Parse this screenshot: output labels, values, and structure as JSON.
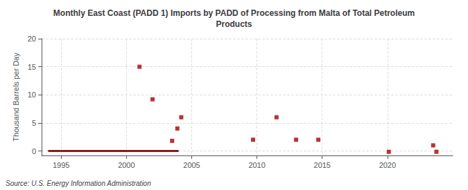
{
  "chart_data": {
    "type": "scatter",
    "title": "Monthly East Coast (PADD 1) Imports by PADD of Processing from Malta of Total Petroleum\nProducts",
    "ylabel": "Thousand Barrels per Day",
    "source": "Source: U.S. Energy Information Administration",
    "xlim": [
      1993.5,
      2025
    ],
    "xticks": [
      1995,
      2000,
      2005,
      2010,
      2015,
      2020
    ],
    "ylim": [
      -0.8,
      20
    ],
    "yticks": [
      0,
      5,
      10,
      15,
      20
    ],
    "grid": true,
    "series": [
      {
        "type": "line",
        "color": "#8b1a1a",
        "line_style": "solid",
        "x": [
          1994.0,
          2004.0
        ],
        "values": [
          0,
          0
        ]
      },
      {
        "type": "scatter",
        "color": "#aa0000",
        "marker": "square",
        "x": [
          2001.0,
          2002.0,
          2003.5,
          2003.9,
          2004.2,
          2009.7,
          2011.5,
          2013.0,
          2014.7,
          2020.1,
          2023.5,
          2023.75
        ],
        "values": [
          15,
          9.2,
          1.8,
          4.0,
          6.0,
          2.0,
          6.0,
          2.0,
          2.0,
          -0.15,
          1.0,
          -0.15
        ]
      }
    ]
  }
}
